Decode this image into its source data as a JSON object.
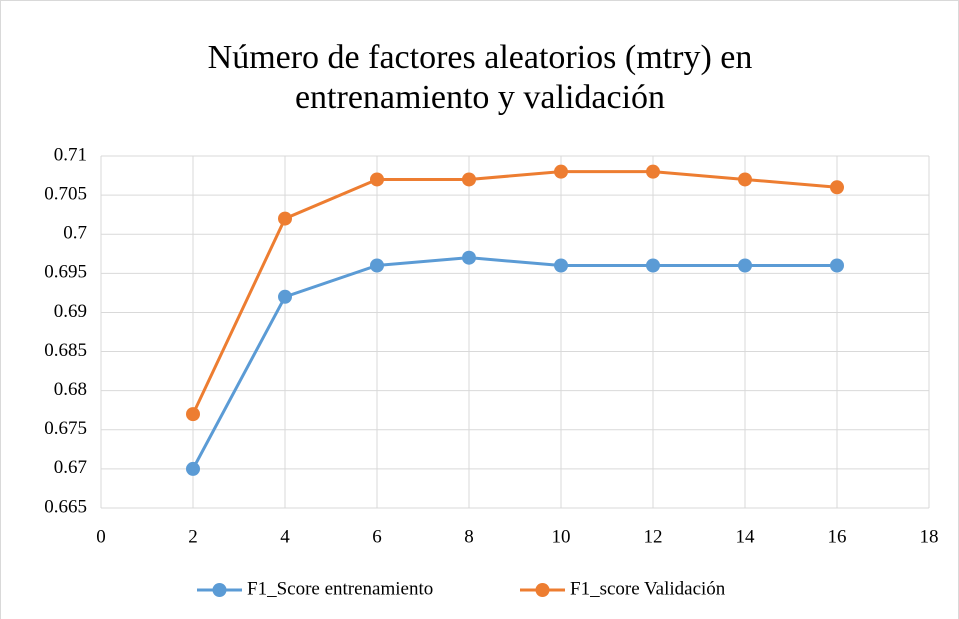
{
  "chart_data": {
    "type": "line",
    "title": [
      "Número de factores aleatorios (mtry) en",
      "entrenamiento y validación"
    ],
    "x": [
      2,
      4,
      6,
      8,
      10,
      12,
      14,
      16
    ],
    "series": [
      {
        "name": "F1_Score entrenamiento",
        "color": "#5b9bd5",
        "values": [
          0.67,
          0.692,
          0.696,
          0.697,
          0.696,
          0.696,
          0.696,
          0.696
        ]
      },
      {
        "name": "F1_score Validación",
        "color": "#ed7d31",
        "values": [
          0.677,
          0.702,
          0.707,
          0.707,
          0.708,
          0.708,
          0.707,
          0.706
        ]
      }
    ],
    "xlim": [
      0,
      18
    ],
    "xticks": [
      0,
      2,
      4,
      6,
      8,
      10,
      12,
      14,
      16,
      18
    ],
    "ylim": [
      0.665,
      0.71
    ],
    "yticks": [
      0.665,
      0.67,
      0.675,
      0.68,
      0.685,
      0.69,
      0.695,
      0.7,
      0.705,
      0.71
    ],
    "grid": true,
    "legend": "bottom"
  }
}
